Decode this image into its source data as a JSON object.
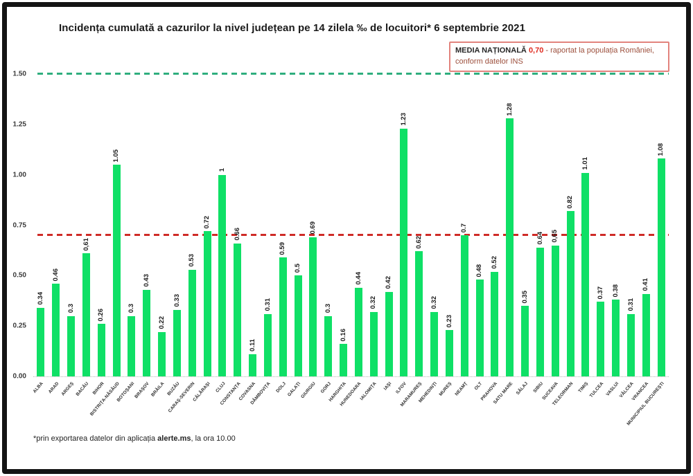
{
  "title": "Incidența cumulată a cazurilor la nivel județean pe 14 zilela ‰ de locuitori* 6 septembrie 2021",
  "legend_box": {
    "label": "MEDIA NAȚIONALĂ",
    "value": "0,70",
    "description": "- raportat la populația României, conform datelor INS"
  },
  "footnote": {
    "prefix": "*prin exportarea datelor din aplicația ",
    "bold": "alerte.ms",
    "suffix": ", la ora 10.00"
  },
  "chart_data": {
    "type": "bar",
    "title": "Incidența cumulată a cazurilor la nivel județean pe 14 zilela ‰ de locuitori* 6 septembrie 2021",
    "categories": [
      "ALBA",
      "ARAD",
      "ARGEȘ",
      "BACĂU",
      "BIHOR",
      "BISTRIȚA-NĂSĂUD",
      "BOTOȘANI",
      "BRAȘOV",
      "BRĂILA",
      "BUZĂU",
      "CARAȘ-SEVERIN",
      "CĂLĂRAȘI",
      "CLUJ",
      "CONSTANȚA",
      "COVASNA",
      "DÂMBOVIȚA",
      "DOLJ",
      "GALAȚI",
      "GIURGIU",
      "GORJ",
      "HARGHITA",
      "HUNEDOARA",
      "IALOMIȚA",
      "IAȘI",
      "ILFOV",
      "MARAMUREȘ",
      "MEHEDINȚI",
      "MUREȘ",
      "NEAMȚ",
      "OLT",
      "PRAHOVA",
      "SATU MARE",
      "SĂLAJ",
      "SIBIU",
      "SUCEAVA",
      "TELEORMAN",
      "TIMIȘ",
      "TULCEA",
      "VASLUI",
      "VÂLCEA",
      "VRANCEA",
      "MUNICIPIUL BUCUREȘTI"
    ],
    "values": [
      0.34,
      0.46,
      0.3,
      0.61,
      0.26,
      1.05,
      0.3,
      0.43,
      0.22,
      0.33,
      0.53,
      0.72,
      1.0,
      0.66,
      0.11,
      0.31,
      0.59,
      0.5,
      0.69,
      0.3,
      0.16,
      0.44,
      0.32,
      0.42,
      1.23,
      0.62,
      0.32,
      0.23,
      0.7,
      0.48,
      0.52,
      1.28,
      0.35,
      0.64,
      0.65,
      0.82,
      1.01,
      0.37,
      0.38,
      0.31,
      0.41,
      1.08
    ],
    "value_labels": [
      "0.34",
      "0.46",
      "0.3",
      "0,61",
      "0.26",
      "1.05",
      "0.3",
      "0.43",
      "0.22",
      "0.33",
      "0.53",
      "0.72",
      "1",
      "0.66",
      "0.11",
      "0.31",
      "0.59",
      "0.5",
      "0.69",
      "0.3",
      "0.16",
      "0.44",
      "0.32",
      "0.42",
      "1.23",
      "0.62",
      "0.32",
      "0.23",
      "0.7",
      "0.48",
      "0.52",
      "1.28",
      "0.35",
      "0.64",
      "0,65",
      "0.82",
      "1.01",
      "0.37",
      "0.38",
      "0.31",
      "0.41",
      "1.08"
    ],
    "xlabel": "",
    "ylabel": "",
    "ylim": [
      0,
      1.5
    ],
    "yticks": [
      "0.00",
      "0.25",
      "0.50",
      "0.75",
      "1.00",
      "1.25",
      "1.50"
    ],
    "grid": false,
    "legend_position": "top-right",
    "bar_color": "#0fe066",
    "reference_lines": [
      {
        "name": "threshold-line-1-50",
        "value": 1.5,
        "color": "#2fae7e",
        "style": "dashed"
      },
      {
        "name": "national-average-line-0-70",
        "value": 0.7,
        "color": "#cf2b27",
        "style": "dashed"
      }
    ]
  }
}
